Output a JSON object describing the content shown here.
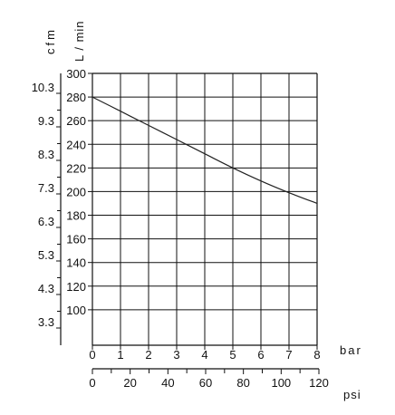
{
  "chart_data": {
    "type": "line",
    "title": "",
    "xlabel": "bar",
    "ylabel": "L / min",
    "secondary_xlabel": "psi",
    "secondary_ylabel": "cfm",
    "xlim": [
      0,
      8
    ],
    "ylim": [
      70,
      300
    ],
    "grid": true,
    "x_ticks": [
      0,
      1,
      2,
      3,
      4,
      5,
      6,
      7,
      8
    ],
    "x_tick_labels": [
      "0",
      "1",
      "2",
      "3",
      "4",
      "5",
      "6",
      "7",
      "8"
    ],
    "y_ticks": [
      100,
      120,
      140,
      160,
      180,
      200,
      220,
      240,
      260,
      280,
      300
    ],
    "y_tick_labels": [
      "100",
      "120",
      "140",
      "160",
      "180",
      "200",
      "220",
      "240",
      "260",
      "280",
      "300"
    ],
    "psi_ticks": [
      0,
      20,
      40,
      60,
      80,
      100,
      120
    ],
    "psi_tick_labels": [
      "0",
      "20",
      "40",
      "60",
      "80",
      "100",
      "120"
    ],
    "cfm_ticks": [
      3.3,
      4.3,
      5.3,
      6.3,
      7.3,
      8.3,
      9.3,
      10.3
    ],
    "cfm_tick_labels": [
      "3.3",
      "4.3",
      "5.3",
      "6.3",
      "7.3",
      "8.3",
      "9.3",
      "10.3"
    ],
    "series": [
      {
        "x": [
          0,
          1,
          2,
          3,
          4,
          5,
          6,
          7,
          8
        ],
        "y": [
          280,
          268,
          256,
          244,
          232,
          220,
          209,
          199,
          190
        ]
      }
    ],
    "colors": {
      "line": "#222222",
      "grid": "#111111"
    }
  }
}
